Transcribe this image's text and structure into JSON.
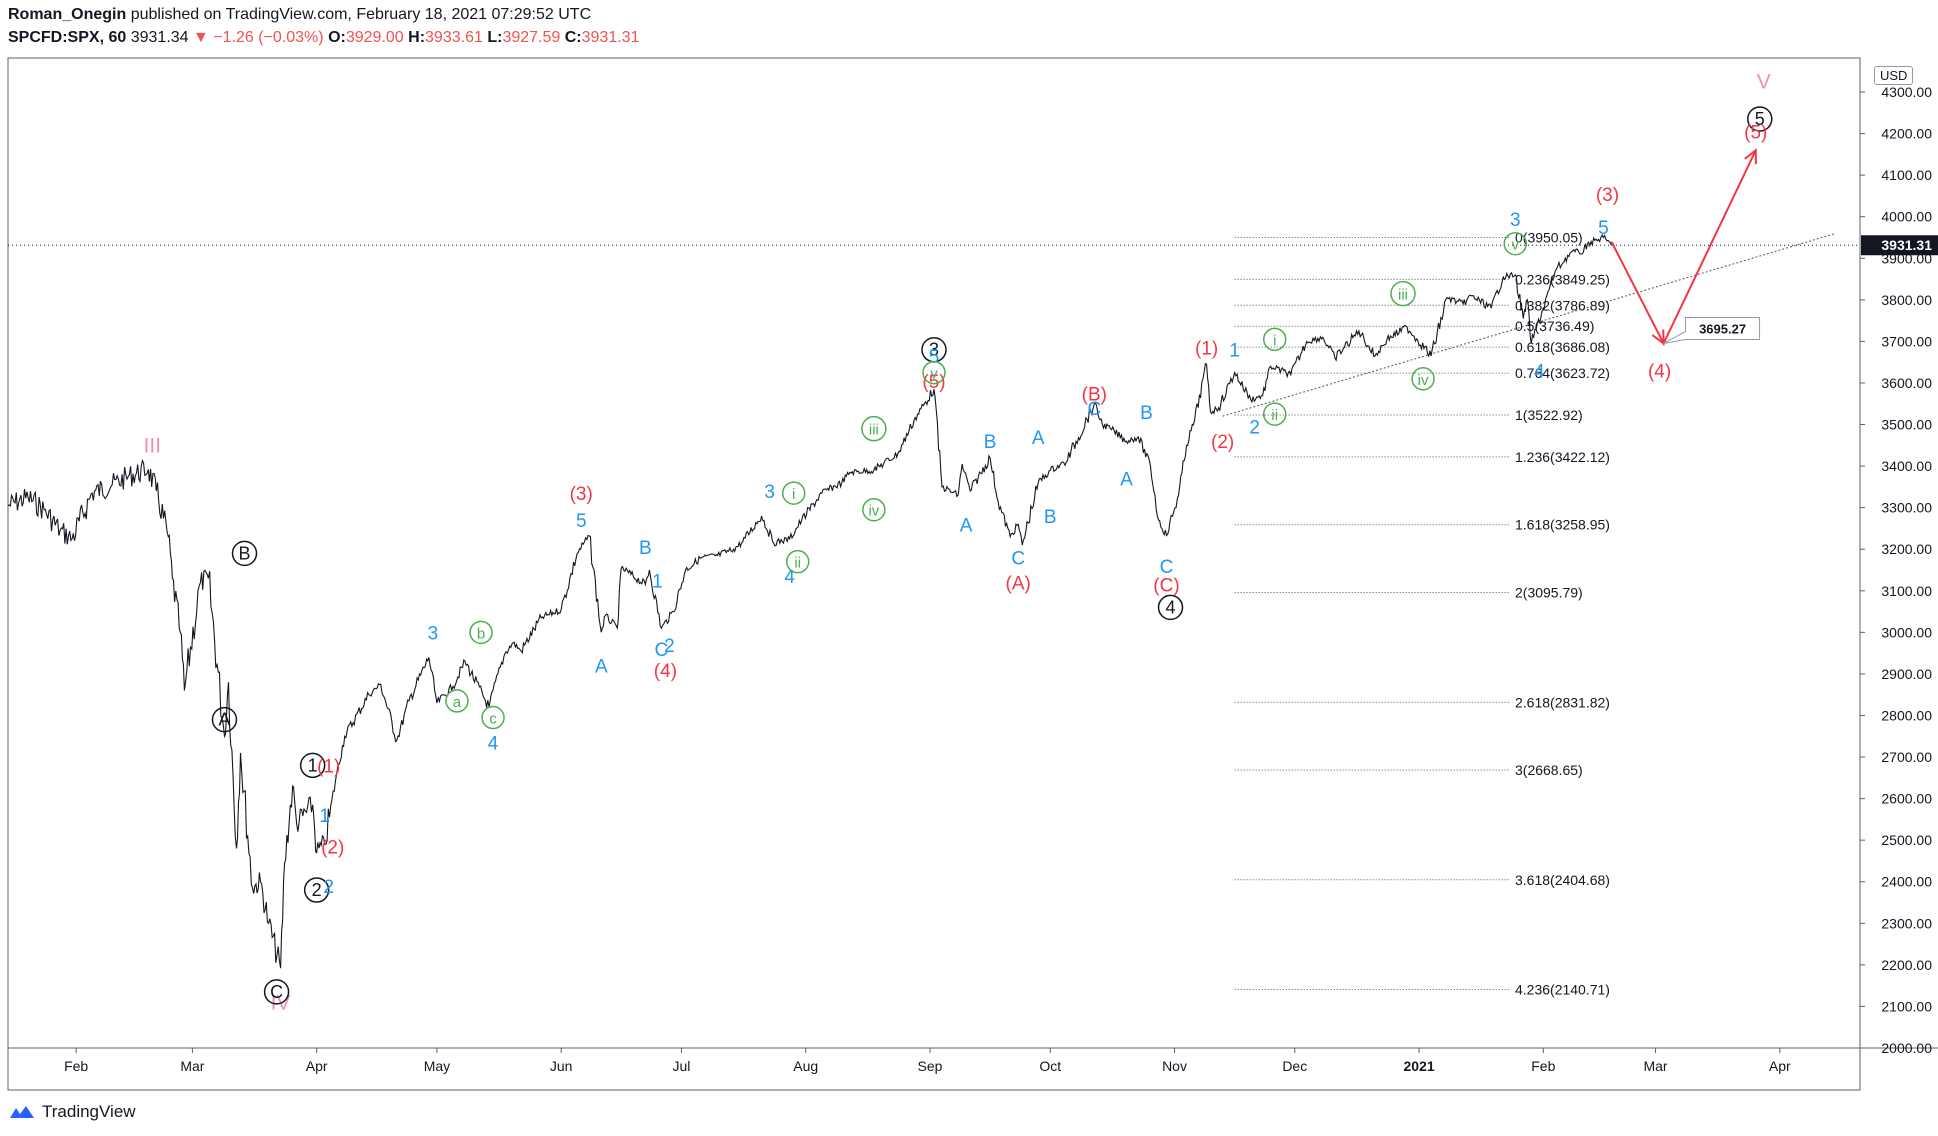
{
  "header": {
    "author": "Roman_Onegin",
    "published_text": "published on TradingView.com, February 18, 2021 07:29:52 UTC",
    "symbol": "SPCFD:SPX, 60",
    "last": "3931.34",
    "change": "−1.26 (−0.03%)",
    "o_label": "O:",
    "o_value": "3929.00",
    "h_label": "H:",
    "h_value": "3933.61",
    "l_label": "L:",
    "l_value": "3927.59",
    "c_label": "C:",
    "c_value": "3931.31"
  },
  "footer": {
    "brand": "TradingView"
  },
  "currency": "USD",
  "colors": {
    "blue": "#2196f3",
    "red": "#f23645",
    "green": "#4caf50",
    "pink": "#f48fb1",
    "black": "#131722",
    "price_tag": "#131722"
  },
  "chart_data": {
    "type": "line",
    "title": "SPCFD:SPX, 60",
    "ylim": [
      2000,
      4350
    ],
    "y_ticks": [
      2000,
      2100,
      2200,
      2300,
      2400,
      2500,
      2600,
      2700,
      2800,
      2900,
      3000,
      3100,
      3200,
      3300,
      3400,
      3500,
      3600,
      3700,
      3800,
      3900,
      4000,
      4100,
      4200,
      4300
    ],
    "y_tick_labels": [
      "2000.00",
      "2100.00",
      "2200.00",
      "2300.00",
      "2400.00",
      "2500.00",
      "2600.00",
      "2700.00",
      "2800.00",
      "2900.00",
      "3000.00",
      "3100.00",
      "3200.00",
      "3300.00",
      "3400.00",
      "3500.00",
      "3600.00",
      "3700.00",
      "3800.00",
      "3900.00",
      "4000.00",
      "4100.00",
      "4200.00",
      "4300.00"
    ],
    "y_top_partial_label": "4",
    "x_ticks": [
      {
        "label": "Feb",
        "d": "2020-02-01"
      },
      {
        "label": "Mar",
        "d": "2020-03-01"
      },
      {
        "label": "Apr",
        "d": "2020-04-01"
      },
      {
        "label": "May",
        "d": "2020-05-01"
      },
      {
        "label": "Jun",
        "d": "2020-06-01"
      },
      {
        "label": "Jul",
        "d": "2020-07-01"
      },
      {
        "label": "Aug",
        "d": "2020-08-01"
      },
      {
        "label": "Sep",
        "d": "2020-09-01"
      },
      {
        "label": "Oct",
        "d": "2020-10-01"
      },
      {
        "label": "Nov",
        "d": "2020-11-01"
      },
      {
        "label": "Dec",
        "d": "2020-12-01"
      },
      {
        "label": "2021",
        "d": "2021-01-01",
        "bold": true
      },
      {
        "label": "Feb",
        "d": "2021-02-01"
      },
      {
        "label": "Mar",
        "d": "2021-03-01"
      },
      {
        "label": "Apr",
        "d": "2021-04-01"
      }
    ],
    "x_range": [
      "2020-01-15",
      "2021-04-21"
    ],
    "last_price": 3931.31,
    "last_price_label": "3931.31",
    "price_series": [
      [
        "2020-01-15",
        3305
      ],
      [
        "2020-01-20",
        3325
      ],
      [
        "2020-01-24",
        3295
      ],
      [
        "2020-01-28",
        3245
      ],
      [
        "2020-01-31",
        3225
      ],
      [
        "2020-02-05",
        3335
      ],
      [
        "2020-02-10",
        3355
      ],
      [
        "2020-02-14",
        3375
      ],
      [
        "2020-02-19",
        3392
      ],
      [
        "2020-02-21",
        3340
      ],
      [
        "2020-02-24",
        3230
      ],
      [
        "2020-02-25",
        3130
      ],
      [
        "2020-02-27",
        3000
      ],
      [
        "2020-02-28",
        2860
      ],
      [
        "2020-03-03",
        3120
      ],
      [
        "2020-03-05",
        3130
      ],
      [
        "2020-03-09",
        2750
      ],
      [
        "2020-03-10",
        2880
      ],
      [
        "2020-03-12",
        2480
      ],
      [
        "2020-03-13",
        2710
      ],
      [
        "2020-03-16",
        2385
      ],
      [
        "2020-03-18",
        2400
      ],
      [
        "2020-03-20",
        2300
      ],
      [
        "2020-03-23",
        2192
      ],
      [
        "2020-03-24",
        2445
      ],
      [
        "2020-03-26",
        2630
      ],
      [
        "2020-03-27",
        2540
      ],
      [
        "2020-03-31",
        2585
      ],
      [
        "2020-04-01",
        2470
      ],
      [
        "2020-04-03",
        2490
      ],
      [
        "2020-04-06",
        2660
      ],
      [
        "2020-04-08",
        2750
      ],
      [
        "2020-04-14",
        2850
      ],
      [
        "2020-04-17",
        2875
      ],
      [
        "2020-04-21",
        2740
      ],
      [
        "2020-04-24",
        2835
      ],
      [
        "2020-04-29",
        2940
      ],
      [
        "2020-05-01",
        2830
      ],
      [
        "2020-05-05",
        2870
      ],
      [
        "2020-05-08",
        2930
      ],
      [
        "2020-05-14",
        2820
      ],
      [
        "2020-05-15",
        2860
      ],
      [
        "2020-05-18",
        2950
      ],
      [
        "2020-05-20",
        2975
      ],
      [
        "2020-05-22",
        2955
      ],
      [
        "2020-05-27",
        3035
      ],
      [
        "2020-06-01",
        3055
      ],
      [
        "2020-06-05",
        3190
      ],
      [
        "2020-06-08",
        3232
      ],
      [
        "2020-06-11",
        3000
      ],
      [
        "2020-06-12",
        3040
      ],
      [
        "2020-06-15",
        3010
      ],
      [
        "2020-06-16",
        3155
      ],
      [
        "2020-06-22",
        3115
      ],
      [
        "2020-06-23",
        3150
      ],
      [
        "2020-06-26",
        3010
      ],
      [
        "2020-06-29",
        3050
      ],
      [
        "2020-07-02",
        3150
      ],
      [
        "2020-07-06",
        3180
      ],
      [
        "2020-07-10",
        3185
      ],
      [
        "2020-07-14",
        3200
      ],
      [
        "2020-07-16",
        3215
      ],
      [
        "2020-07-21",
        3280
      ],
      [
        "2020-07-24",
        3215
      ],
      [
        "2020-07-28",
        3225
      ],
      [
        "2020-07-31",
        3270
      ],
      [
        "2020-08-05",
        3335
      ],
      [
        "2020-08-10",
        3360
      ],
      [
        "2020-08-12",
        3385
      ],
      [
        "2020-08-18",
        3390
      ],
      [
        "2020-08-24",
        3430
      ],
      [
        "2020-08-28",
        3510
      ],
      [
        "2020-09-02",
        3585
      ],
      [
        "2020-09-04",
        3350
      ],
      [
        "2020-09-08",
        3330
      ],
      [
        "2020-09-09",
        3405
      ],
      [
        "2020-09-11",
        3340
      ],
      [
        "2020-09-16",
        3420
      ],
      [
        "2020-09-18",
        3315
      ],
      [
        "2020-09-21",
        3230
      ],
      [
        "2020-09-23",
        3260
      ],
      [
        "2020-09-24",
        3210
      ],
      [
        "2020-09-28",
        3360
      ],
      [
        "2020-10-01",
        3390
      ],
      [
        "2020-10-05",
        3410
      ],
      [
        "2020-10-12",
        3550
      ],
      [
        "2020-10-14",
        3500
      ],
      [
        "2020-10-16",
        3490
      ],
      [
        "2020-10-20",
        3460
      ],
      [
        "2020-10-23",
        3470
      ],
      [
        "2020-10-26",
        3400
      ],
      [
        "2020-10-28",
        3270
      ],
      [
        "2020-10-30",
        3233
      ],
      [
        "2020-11-02",
        3330
      ],
      [
        "2020-11-04",
        3450
      ],
      [
        "2020-11-06",
        3510
      ],
      [
        "2020-11-09",
        3645
      ],
      [
        "2020-11-10",
        3530
      ],
      [
        "2020-11-12",
        3540
      ],
      [
        "2020-11-16",
        3625
      ],
      [
        "2020-11-20",
        3560
      ],
      [
        "2020-11-23",
        3570
      ],
      [
        "2020-11-25",
        3640
      ],
      [
        "2020-11-30",
        3620
      ],
      [
        "2020-12-04",
        3700
      ],
      [
        "2020-12-08",
        3710
      ],
      [
        "2020-12-11",
        3660
      ],
      [
        "2020-12-17",
        3725
      ],
      [
        "2020-12-21",
        3665
      ],
      [
        "2020-12-24",
        3705
      ],
      [
        "2020-12-29",
        3735
      ],
      [
        "2021-01-04",
        3665
      ],
      [
        "2021-01-08",
        3805
      ],
      [
        "2021-01-12",
        3790
      ],
      [
        "2021-01-14",
        3810
      ],
      [
        "2021-01-19",
        3780
      ],
      [
        "2021-01-22",
        3855
      ],
      [
        "2021-01-25",
        3860
      ],
      [
        "2021-01-27",
        3755
      ],
      [
        "2021-01-28",
        3800
      ],
      [
        "2021-01-29",
        3695
      ],
      [
        "2021-02-01",
        3780
      ],
      [
        "2021-02-04",
        3870
      ],
      [
        "2021-02-08",
        3915
      ],
      [
        "2021-02-11",
        3915
      ],
      [
        "2021-02-12",
        3935
      ],
      [
        "2021-02-16",
        3950
      ],
      [
        "2021-02-18",
        3931
      ]
    ],
    "fib_levels": [
      {
        "label": "0(3950.05)",
        "v": 3950.05
      },
      {
        "label": "0.236(3849.25)",
        "v": 3849.25
      },
      {
        "label": "0.382(3786.89)",
        "v": 3786.89
      },
      {
        "label": "0.5(3736.49)",
        "v": 3736.49
      },
      {
        "label": "0.618(3686.08)",
        "v": 3686.08
      },
      {
        "label": "0.764(3623.72)",
        "v": 3623.72
      },
      {
        "label": "1(3522.92)",
        "v": 3522.92
      },
      {
        "label": "1.236(3422.12)",
        "v": 3422.12
      },
      {
        "label": "1.618(3258.95)",
        "v": 3258.95
      },
      {
        "label": "2(3095.79)",
        "v": 3095.79
      },
      {
        "label": "2.618(2831.82)",
        "v": 2831.82
      },
      {
        "label": "3(2668.65)",
        "v": 2668.65
      },
      {
        "label": "3.618(2404.68)",
        "v": 2404.68
      },
      {
        "label": "4.236(2140.71)",
        "v": 2140.71
      }
    ],
    "fib_start_date": "2020-11-16",
    "target_label": "3695.27",
    "projection": [
      [
        "2021-02-18",
        3940
      ],
      [
        "2021-03-03",
        3695
      ],
      [
        "2021-03-26",
        4160
      ]
    ],
    "trendline": [
      [
        "2020-11-13",
        3520
      ],
      [
        "2021-04-15",
        3960
      ]
    ],
    "wave_labels": [
      {
        "t": "III",
        "d": "2020-02-20",
        "v": 3450,
        "c": "pink"
      },
      {
        "t": "IV",
        "d": "2020-03-23",
        "v": 2110,
        "c": "pink"
      },
      {
        "t": "V",
        "d": "2021-03-28",
        "v": 4325,
        "c": "pink"
      },
      {
        "t": "A",
        "d": "2020-03-09",
        "v": 2790,
        "c": "black",
        "circle": true
      },
      {
        "t": "B",
        "d": "2020-03-14",
        "v": 3190,
        "c": "black",
        "circle": true
      },
      {
        "t": "C",
        "d": "2020-03-22",
        "v": 2135,
        "c": "black",
        "circle": true
      },
      {
        "t": "1",
        "d": "2020-03-31",
        "v": 2680,
        "c": "black",
        "circle": true
      },
      {
        "t": "2",
        "d": "2020-04-01",
        "v": 2380,
        "c": "black",
        "circle": true
      },
      {
        "t": "3",
        "d": "2020-09-02",
        "v": 3680,
        "c": "black",
        "circle": true
      },
      {
        "t": "4",
        "d": "2020-10-31",
        "v": 3060,
        "c": "black",
        "circle": true
      },
      {
        "t": "5",
        "d": "2021-03-27",
        "v": 4235,
        "c": "black",
        "circle": true
      },
      {
        "t": "(1)",
        "d": "2020-04-04",
        "v": 2680,
        "c": "red"
      },
      {
        "t": "(2)",
        "d": "2020-04-05",
        "v": 2485,
        "c": "red"
      },
      {
        "t": "(3)",
        "d": "2020-06-06",
        "v": 3335,
        "c": "red"
      },
      {
        "t": "(4)",
        "d": "2020-06-27",
        "v": 2910,
        "c": "red"
      },
      {
        "t": "(5)",
        "d": "2020-09-02",
        "v": 3605,
        "c": "red"
      },
      {
        "t": "(A)",
        "d": "2020-09-23",
        "v": 3120,
        "c": "red"
      },
      {
        "t": "(B)",
        "d": "2020-10-12",
        "v": 3575,
        "c": "red"
      },
      {
        "t": "(C)",
        "d": "2020-10-30",
        "v": 3115,
        "c": "red"
      },
      {
        "t": "(1)",
        "d": "2020-11-09",
        "v": 3685,
        "c": "red"
      },
      {
        "t": "(2)",
        "d": "2020-11-13",
        "v": 3460,
        "c": "red"
      },
      {
        "t": "(3)",
        "d": "2021-02-17",
        "v": 4055,
        "c": "red"
      },
      {
        "t": "(4)",
        "d": "2021-03-02",
        "v": 3630,
        "c": "red"
      },
      {
        "t": "(5)",
        "d": "2021-03-26",
        "v": 4205,
        "c": "red"
      },
      {
        "t": "1",
        "d": "2020-04-03",
        "v": 2560,
        "c": "blue"
      },
      {
        "t": "2",
        "d": "2020-04-04",
        "v": 2390,
        "c": "blue"
      },
      {
        "t": "3",
        "d": "2020-04-30",
        "v": 3000,
        "c": "blue"
      },
      {
        "t": "4",
        "d": "2020-05-15",
        "v": 2735,
        "c": "blue"
      },
      {
        "t": "5",
        "d": "2020-06-06",
        "v": 3270,
        "c": "blue"
      },
      {
        "t": "A",
        "d": "2020-06-11",
        "v": 2920,
        "c": "blue"
      },
      {
        "t": "B",
        "d": "2020-06-22",
        "v": 3205,
        "c": "blue"
      },
      {
        "t": "1",
        "d": "2020-06-25",
        "v": 3125,
        "c": "blue"
      },
      {
        "t": "C",
        "d": "2020-06-26",
        "v": 2960,
        "c": "blue"
      },
      {
        "t": "2",
        "d": "2020-06-28",
        "v": 2970,
        "c": "blue"
      },
      {
        "t": "3",
        "d": "2020-07-23",
        "v": 3340,
        "c": "blue"
      },
      {
        "t": "4",
        "d": "2020-07-28",
        "v": 3135,
        "c": "blue"
      },
      {
        "t": "5",
        "d": "2020-09-02",
        "v": 3665,
        "c": "blue"
      },
      {
        "t": "A",
        "d": "2020-09-10",
        "v": 3260,
        "c": "blue"
      },
      {
        "t": "B",
        "d": "2020-09-16",
        "v": 3460,
        "c": "blue"
      },
      {
        "t": "C",
        "d": "2020-09-23",
        "v": 3180,
        "c": "blue"
      },
      {
        "t": "A",
        "d": "2020-09-28",
        "v": 3470,
        "c": "blue"
      },
      {
        "t": "B",
        "d": "2020-10-01",
        "v": 3280,
        "c": "blue"
      },
      {
        "t": "C",
        "d": "2020-10-12",
        "v": 3540,
        "c": "blue"
      },
      {
        "t": "A",
        "d": "2020-10-20",
        "v": 3370,
        "c": "blue"
      },
      {
        "t": "B",
        "d": "2020-10-25",
        "v": 3530,
        "c": "blue"
      },
      {
        "t": "C",
        "d": "2020-10-30",
        "v": 3160,
        "c": "blue"
      },
      {
        "t": "1",
        "d": "2020-11-16",
        "v": 3680,
        "c": "blue"
      },
      {
        "t": "2",
        "d": "2020-11-21",
        "v": 3495,
        "c": "blue"
      },
      {
        "t": "3",
        "d": "2021-01-25",
        "v": 3995,
        "c": "blue"
      },
      {
        "t": "4",
        "d": "2021-01-31",
        "v": 3630,
        "c": "blue"
      },
      {
        "t": "5",
        "d": "2021-02-16",
        "v": 3975,
        "c": "blue"
      },
      {
        "t": "a",
        "d": "2020-05-06",
        "v": 2835,
        "c": "green",
        "circle": true
      },
      {
        "t": "b",
        "d": "2020-05-12",
        "v": 3000,
        "c": "green",
        "circle": true
      },
      {
        "t": "c",
        "d": "2020-05-15",
        "v": 2795,
        "c": "green",
        "circle": true
      },
      {
        "t": "i",
        "d": "2020-07-29",
        "v": 3335,
        "c": "green",
        "circle": true
      },
      {
        "t": "ii",
        "d": "2020-07-30",
        "v": 3170,
        "c": "green",
        "circle": true
      },
      {
        "t": "iii",
        "d": "2020-08-18",
        "v": 3490,
        "c": "green",
        "circle": true
      },
      {
        "t": "iv",
        "d": "2020-08-18",
        "v": 3295,
        "c": "green",
        "circle": true
      },
      {
        "t": "v",
        "d": "2020-09-02",
        "v": 3625,
        "c": "green",
        "circle": true
      },
      {
        "t": "i",
        "d": "2020-11-26",
        "v": 3705,
        "c": "green",
        "circle": true
      },
      {
        "t": "ii",
        "d": "2020-11-26",
        "v": 3525,
        "c": "green",
        "circle": true
      },
      {
        "t": "iii",
        "d": "2020-12-28",
        "v": 3815,
        "c": "green",
        "circle": true
      },
      {
        "t": "iv",
        "d": "2021-01-02",
        "v": 3610,
        "c": "green",
        "circle": true
      },
      {
        "t": "v",
        "d": "2021-01-25",
        "v": 3935,
        "c": "green",
        "circle": true
      }
    ]
  }
}
